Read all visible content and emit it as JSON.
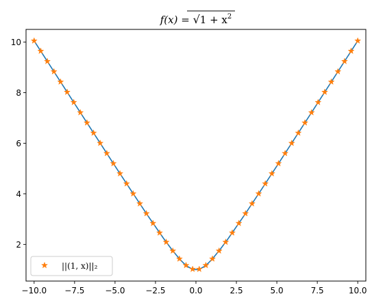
{
  "chart_data": {
    "type": "line",
    "title": "f(x) = √(1 + x²)",
    "title_parts": {
      "lhs": "f(x) = ",
      "root_arg": "1 + x",
      "exp": "2"
    },
    "xlabel": "",
    "ylabel": "",
    "xlim": [
      -10.5,
      10.5
    ],
    "ylim": [
      0.55,
      10.5
    ],
    "xticks": [
      -10.0,
      -7.5,
      -5.0,
      -2.5,
      0.0,
      2.5,
      5.0,
      7.5,
      10.0
    ],
    "xtick_labels": [
      "−10.0",
      "−7.5",
      "−5.0",
      "−2.5",
      "0.0",
      "2.5",
      "5.0",
      "7.5",
      "10.0"
    ],
    "yticks": [
      2,
      4,
      6,
      8,
      10
    ],
    "ytick_labels": [
      "2",
      "4",
      "6",
      "8",
      "10"
    ],
    "grid": false,
    "legend_position": "lower-left",
    "series": [
      {
        "kind": "line",
        "color": "#1f77b4",
        "x": [
          -10.0,
          -9.0,
          -8.0,
          -7.0,
          -6.0,
          -5.0,
          -4.0,
          -3.0,
          -2.0,
          -1.5,
          -1.0,
          -0.75,
          -0.5,
          -0.25,
          0.0,
          0.25,
          0.5,
          0.75,
          1.0,
          1.5,
          2.0,
          3.0,
          4.0,
          5.0,
          6.0,
          7.0,
          8.0,
          9.0,
          10.0
        ],
        "y": [
          10.05,
          9.055,
          8.062,
          7.071,
          6.083,
          5.099,
          4.123,
          3.162,
          2.236,
          1.803,
          1.414,
          1.25,
          1.118,
          1.031,
          1.0,
          1.031,
          1.118,
          1.25,
          1.414,
          1.803,
          2.236,
          3.162,
          4.123,
          5.099,
          6.083,
          7.071,
          8.062,
          9.055,
          10.05
        ]
      },
      {
        "kind": "scatter",
        "name": "||(1, x)||₂",
        "marker": "star",
        "color": "#ff7f0e",
        "x": [
          -10.0,
          -9.592,
          -9.184,
          -8.776,
          -8.367,
          -7.959,
          -7.551,
          -7.143,
          -6.735,
          -6.327,
          -5.918,
          -5.51,
          -5.102,
          -4.694,
          -4.286,
          -3.878,
          -3.469,
          -3.061,
          -2.653,
          -2.245,
          -1.837,
          -1.429,
          -1.02,
          -0.612,
          -0.204,
          0.204,
          0.612,
          1.02,
          1.429,
          1.837,
          2.245,
          2.653,
          3.061,
          3.469,
          3.878,
          4.286,
          4.694,
          5.102,
          5.51,
          5.918,
          6.327,
          6.735,
          7.143,
          7.551,
          7.959,
          8.367,
          8.776,
          9.184,
          9.592,
          10.0
        ],
        "y": [
          10.05,
          9.644,
          9.238,
          8.833,
          8.427,
          8.022,
          7.617,
          7.213,
          6.809,
          6.405,
          6.002,
          5.6,
          5.199,
          4.799,
          4.401,
          4.005,
          3.611,
          3.221,
          2.835,
          2.458,
          2.091,
          1.744,
          1.429,
          1.172,
          1.021,
          1.021,
          1.172,
          1.429,
          1.744,
          2.091,
          2.458,
          2.835,
          3.221,
          3.611,
          4.005,
          4.401,
          4.799,
          5.199,
          5.6,
          6.002,
          6.405,
          6.809,
          7.213,
          7.617,
          8.022,
          8.427,
          8.833,
          9.238,
          9.644,
          10.05
        ]
      }
    ]
  }
}
